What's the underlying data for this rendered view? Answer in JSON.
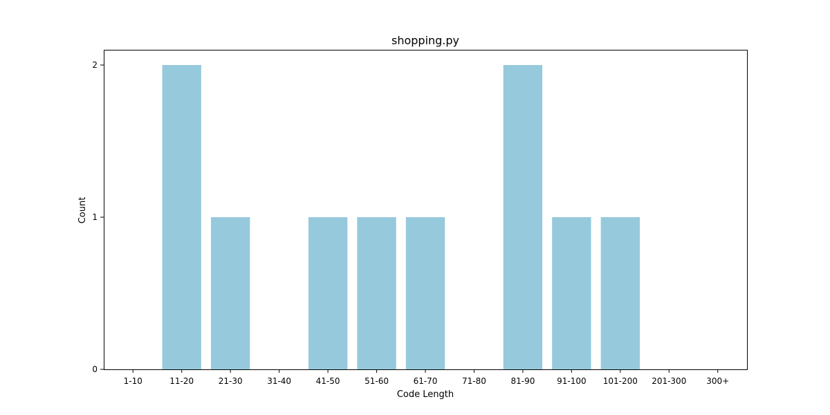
{
  "chart_data": {
    "type": "bar",
    "title": "shopping.py",
    "xlabel": "Code Length",
    "ylabel": "Count",
    "categories": [
      "1-10",
      "11-20",
      "21-30",
      "31-40",
      "41-50",
      "51-60",
      "61-70",
      "71-80",
      "81-90",
      "91-100",
      "101-200",
      "201-300",
      "300+"
    ],
    "values": [
      0,
      2,
      1,
      0,
      1,
      1,
      1,
      0,
      2,
      1,
      1,
      0,
      0
    ],
    "yticks": [
      "0",
      "1",
      "2"
    ],
    "ylim": [
      0,
      2.1
    ],
    "grid": false,
    "bar_color": "#96c9dc"
  }
}
